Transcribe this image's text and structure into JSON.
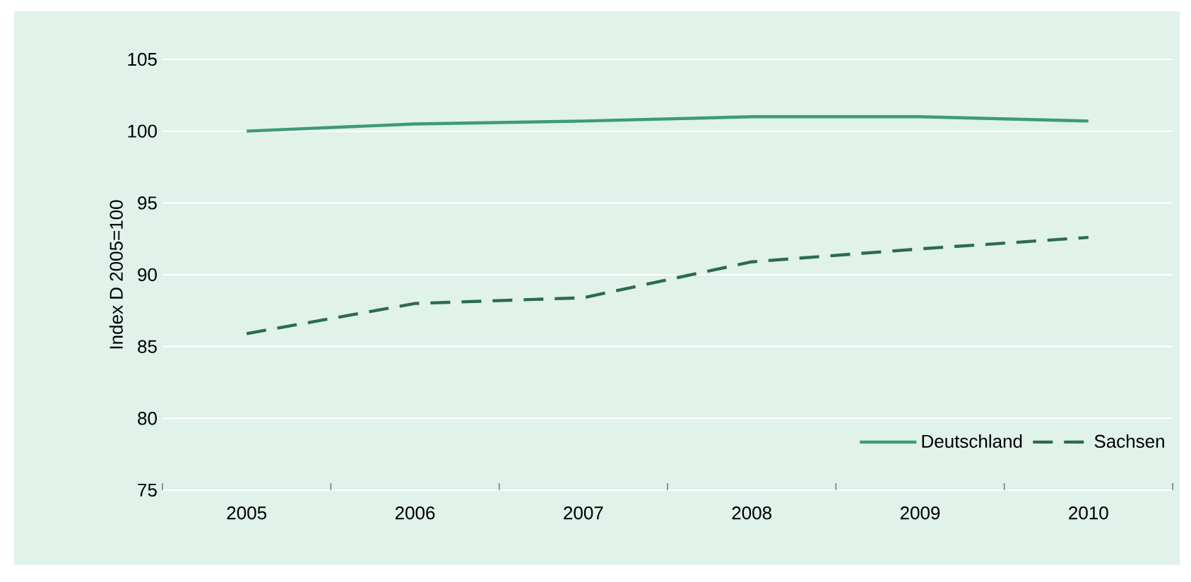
{
  "chart_data": {
    "type": "line",
    "ylabel": "Index D 2005=100",
    "categories": [
      "2005",
      "2006",
      "2007",
      "2008",
      "2009",
      "2010"
    ],
    "series": [
      {
        "name": "Deutschland",
        "color": "#3d9b72",
        "line_style": "solid",
        "values": [
          100,
          100.5,
          100.7,
          101.0,
          101.0,
          100.7
        ]
      },
      {
        "name": "Sachsen",
        "color": "#2b6b52",
        "line_style": "dashed",
        "values": [
          85.9,
          88.0,
          88.4,
          90.9,
          91.8,
          92.6
        ]
      }
    ],
    "ylim": [
      75,
      105
    ],
    "yticks": [
      75,
      80,
      85,
      90,
      95,
      100,
      105
    ],
    "grid": "y",
    "legend": "bottom right",
    "marker": "none"
  }
}
